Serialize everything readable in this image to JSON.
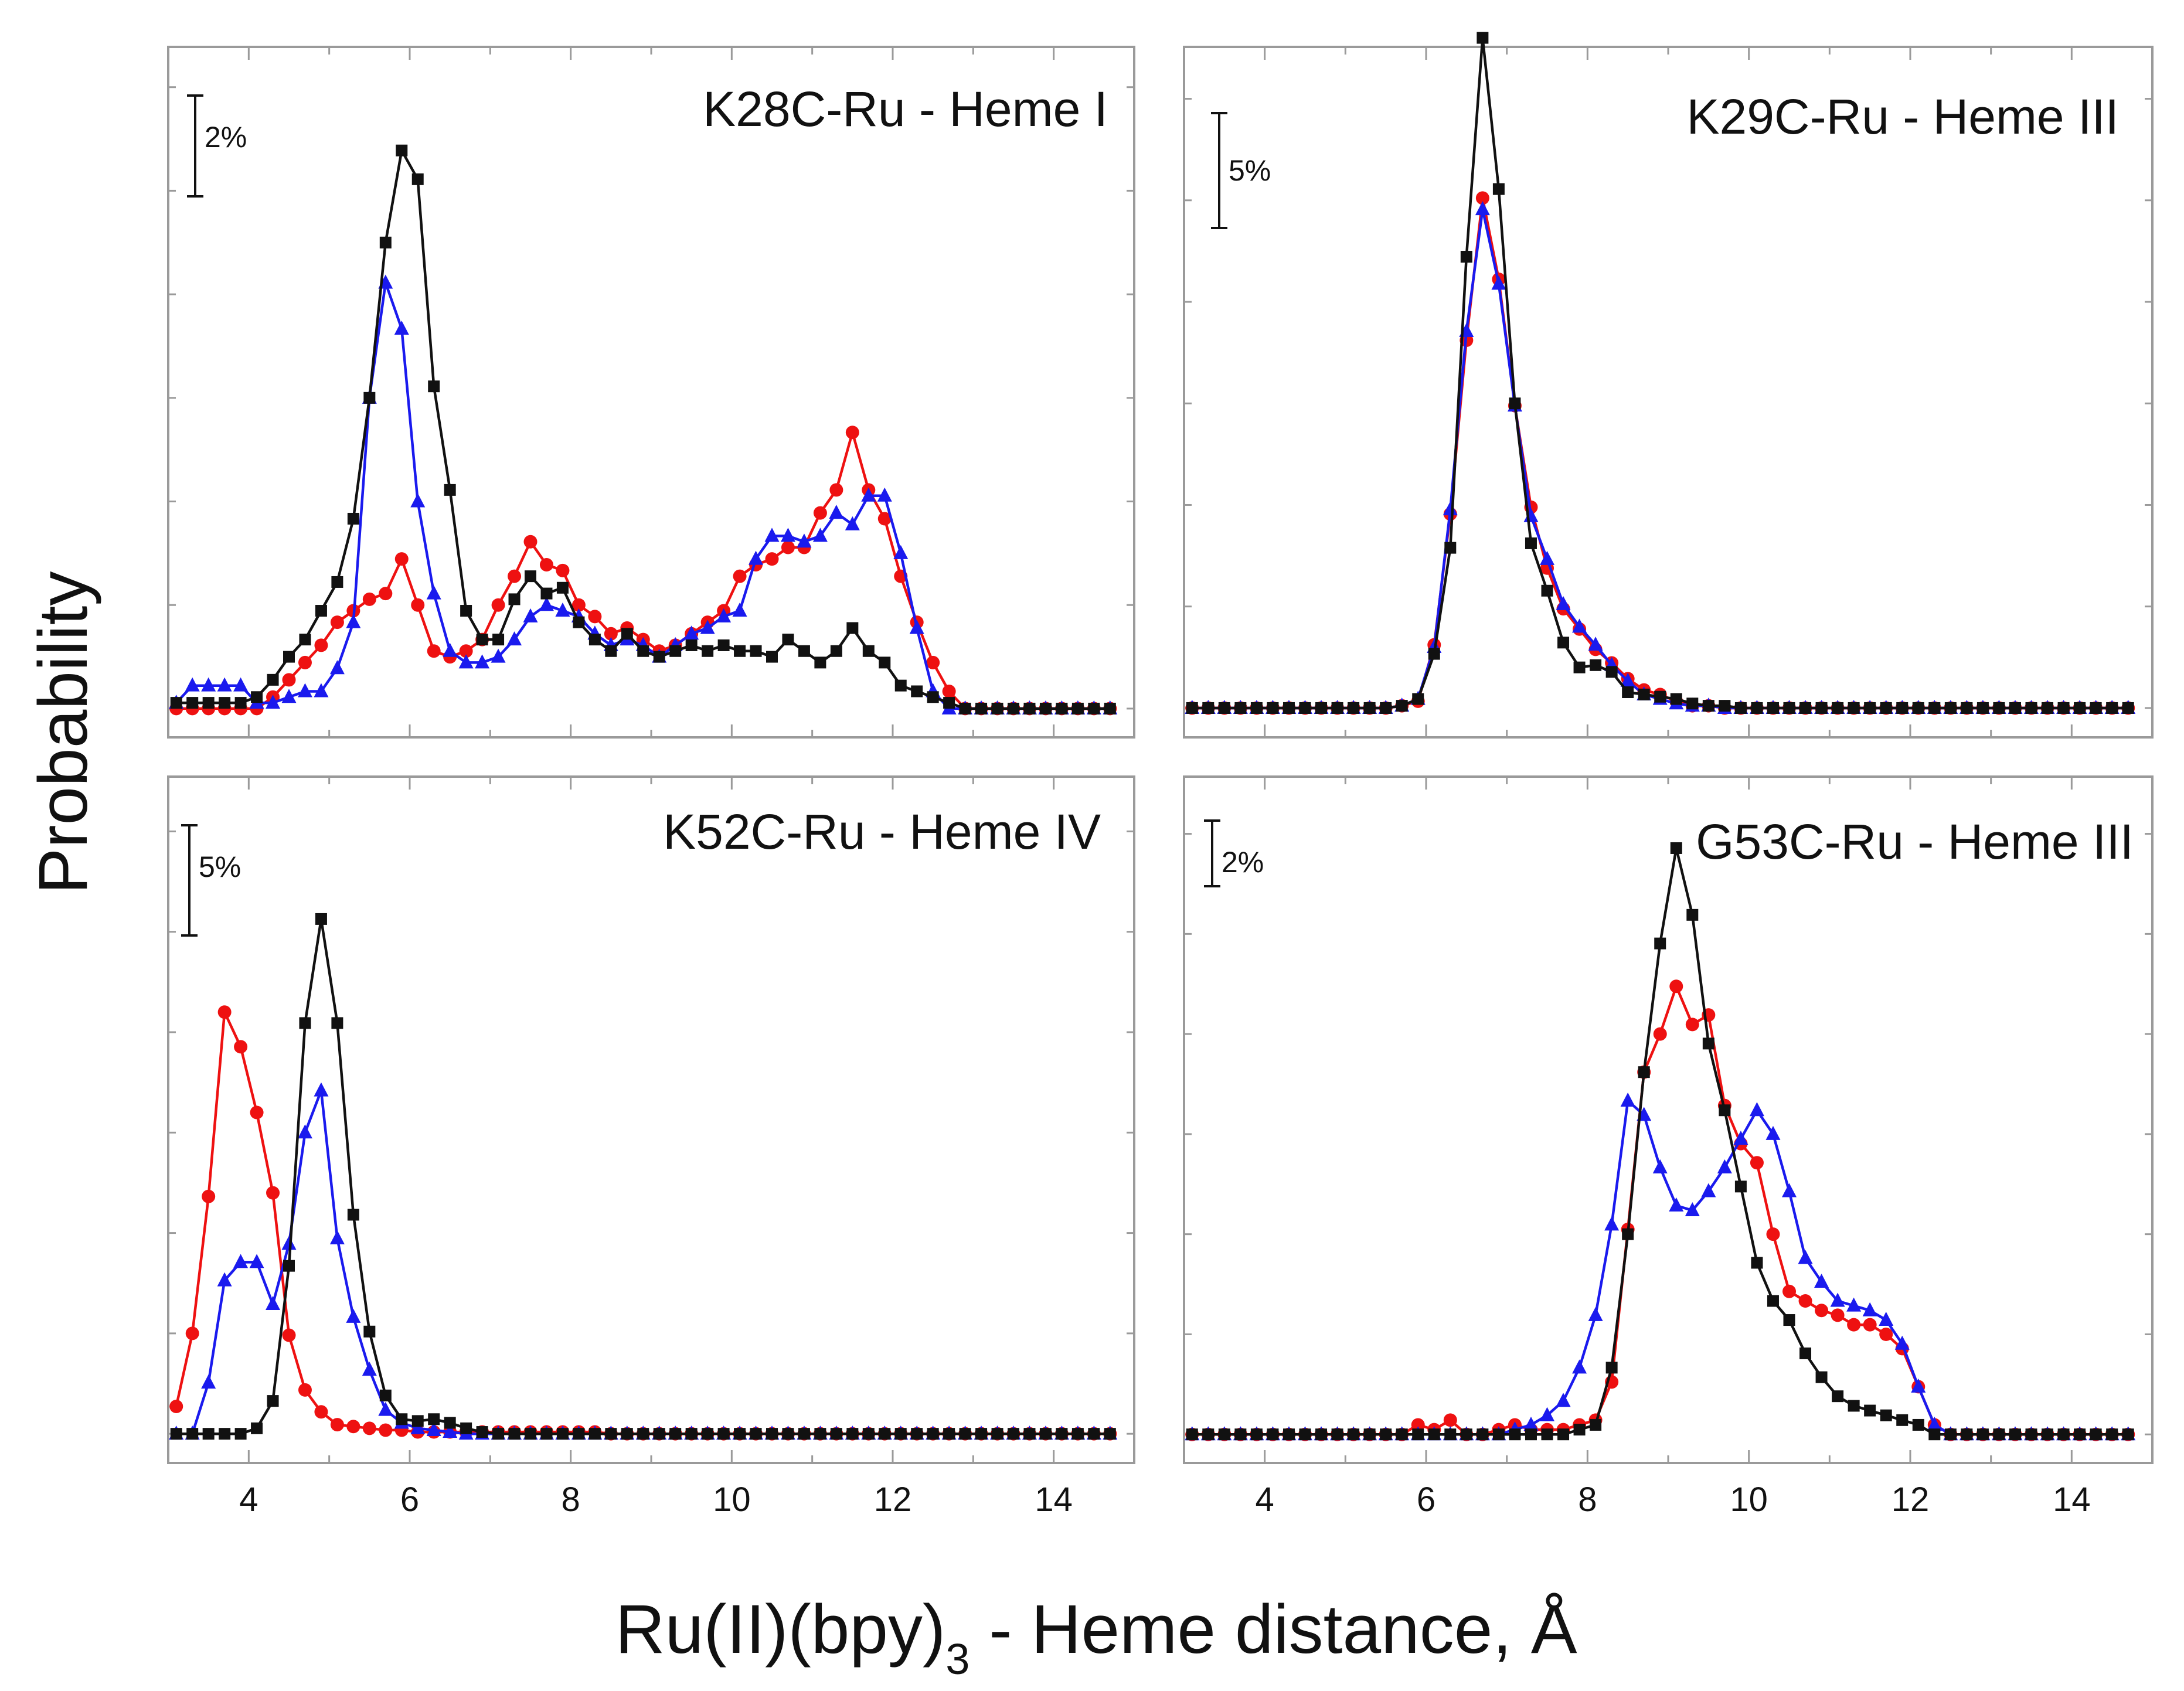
{
  "figure": {
    "ylabel": "Probability",
    "xlabel_main": "Ru(II)(bpy)",
    "xlabel_sub": "3",
    "xlabel_rest": " - Heme distance, Å",
    "x_ticks": [
      "4",
      "6",
      "8",
      "10",
      "12",
      "14"
    ]
  },
  "series_styles": [
    {
      "name": "black-squares",
      "color": "#111111",
      "marker": "square"
    },
    {
      "name": "red-circles",
      "color": "#ee1111",
      "marker": "circle"
    },
    {
      "name": "blue-triangles",
      "color": "#1a1aee",
      "marker": "triangle"
    }
  ],
  "chart_data": [
    {
      "type": "line",
      "title": "K28C-Ru - Heme I",
      "scale_bar": "2%",
      "xlim": [
        3,
        15
      ],
      "ylim": [
        -0.5,
        11.5
      ],
      "y_minor_ticks": [
        0,
        1.8,
        3.6,
        5.4,
        7.2,
        9.0,
        10.8
      ],
      "x": [
        3.1,
        3.3,
        3.5,
        3.7,
        3.9,
        4.1,
        4.3,
        4.5,
        4.7,
        4.9,
        5.1,
        5.3,
        5.5,
        5.7,
        5.9,
        6.1,
        6.3,
        6.5,
        6.7,
        6.9,
        7.1,
        7.3,
        7.5,
        7.7,
        7.9,
        8.1,
        8.3,
        8.5,
        8.7,
        8.9,
        9.1,
        9.3,
        9.5,
        9.7,
        9.9,
        10.1,
        10.3,
        10.5,
        10.7,
        10.9,
        11.1,
        11.3,
        11.5,
        11.7,
        11.9,
        12.1,
        12.3,
        12.5,
        12.7,
        12.9,
        13.1,
        13.3,
        13.5,
        13.7,
        13.9,
        14.1,
        14.3,
        14.5,
        14.7
      ],
      "series": [
        {
          "name": "black-squares",
          "values": [
            0.1,
            0.1,
            0.1,
            0.1,
            0.1,
            0.2,
            0.5,
            0.9,
            1.2,
            1.7,
            2.2,
            3.3,
            5.4,
            8.1,
            9.7,
            9.2,
            5.6,
            3.8,
            1.7,
            1.2,
            1.2,
            1.9,
            2.3,
            2.0,
            2.1,
            1.5,
            1.2,
            1.0,
            1.3,
            1.0,
            0.9,
            1.0,
            1.1,
            1.0,
            1.1,
            1.0,
            1.0,
            0.9,
            1.2,
            1.0,
            0.8,
            1.0,
            1.4,
            1.0,
            0.8,
            0.4,
            0.3,
            0.2,
            0.1,
            0.0,
            0.0,
            0.0,
            0.0,
            0.0,
            0.0,
            0.0,
            0.0,
            0.0,
            0.0
          ]
        },
        {
          "name": "red-circles",
          "values": [
            0.0,
            0.0,
            0.0,
            0.0,
            0.0,
            0.0,
            0.2,
            0.5,
            0.8,
            1.1,
            1.5,
            1.7,
            1.9,
            2.0,
            2.6,
            1.8,
            1.0,
            0.9,
            1.0,
            1.2,
            1.8,
            2.3,
            2.9,
            2.5,
            2.4,
            1.8,
            1.6,
            1.3,
            1.4,
            1.2,
            1.0,
            1.1,
            1.3,
            1.5,
            1.7,
            2.3,
            2.5,
            2.6,
            2.8,
            2.8,
            3.4,
            3.8,
            4.8,
            3.8,
            3.3,
            2.3,
            1.5,
            0.8,
            0.3,
            0.0,
            0.0,
            0.0,
            0.0,
            0.0,
            0.0,
            0.0,
            0.0,
            0.0,
            0.0
          ]
        },
        {
          "name": "blue-triangles",
          "values": [
            0.1,
            0.4,
            0.4,
            0.4,
            0.4,
            0.1,
            0.1,
            0.2,
            0.3,
            0.3,
            0.7,
            1.5,
            5.4,
            7.4,
            6.6,
            3.6,
            2.0,
            1.0,
            0.8,
            0.8,
            0.9,
            1.2,
            1.6,
            1.8,
            1.7,
            1.6,
            1.3,
            1.1,
            1.2,
            1.1,
            0.9,
            1.1,
            1.3,
            1.4,
            1.6,
            1.7,
            2.6,
            3.0,
            3.0,
            2.9,
            3.0,
            3.4,
            3.2,
            3.7,
            3.7,
            2.7,
            1.4,
            0.3,
            0.0,
            0.0,
            0.0,
            0.0,
            0.0,
            0.0,
            0.0,
            0.0,
            0.0,
            0.0,
            0.0
          ]
        }
      ]
    },
    {
      "type": "line",
      "title": "K29C-Ru - Heme III",
      "scale_bar": "5%",
      "xlim": [
        3,
        15
      ],
      "ylim": [
        -1.3,
        29.3
      ],
      "y_minor_ticks": [
        0,
        4.5,
        9.0,
        13.5,
        18.0,
        22.5,
        27.0
      ],
      "x": [
        3.1,
        3.3,
        3.5,
        3.7,
        3.9,
        4.1,
        4.3,
        4.5,
        4.7,
        4.9,
        5.1,
        5.3,
        5.5,
        5.7,
        5.9,
        6.1,
        6.3,
        6.5,
        6.7,
        6.9,
        7.1,
        7.3,
        7.5,
        7.7,
        7.9,
        8.1,
        8.3,
        8.5,
        8.7,
        8.9,
        9.1,
        9.3,
        9.5,
        9.7,
        9.9,
        10.1,
        10.3,
        10.5,
        10.7,
        10.9,
        11.1,
        11.3,
        11.5,
        11.7,
        11.9,
        12.1,
        12.3,
        12.5,
        12.7,
        12.9,
        13.1,
        13.3,
        13.5,
        13.7,
        13.9,
        14.1,
        14.3,
        14.5,
        14.7
      ],
      "series": [
        {
          "name": "black-squares",
          "values": [
            0.0,
            0.0,
            0.0,
            0.0,
            0.0,
            0.0,
            0.0,
            0.0,
            0.0,
            0.0,
            0.0,
            0.0,
            0.0,
            0.1,
            0.4,
            2.4,
            7.1,
            20.0,
            29.7,
            23.0,
            13.5,
            7.3,
            5.2,
            2.9,
            1.8,
            1.9,
            1.6,
            0.7,
            0.6,
            0.5,
            0.4,
            0.2,
            0.1,
            0.1,
            0.0,
            0.0,
            0.0,
            0.0,
            0.0,
            0.0,
            0.0,
            0.0,
            0.0,
            0.0,
            0.0,
            0.0,
            0.0,
            0.0,
            0.0,
            0.0,
            0.0,
            0.0,
            0.0,
            0.0,
            0.0,
            0.0,
            0.0,
            0.0,
            0.0
          ]
        },
        {
          "name": "red-circles",
          "values": [
            0.0,
            0.0,
            0.0,
            0.0,
            0.0,
            0.0,
            0.0,
            0.0,
            0.0,
            0.0,
            0.0,
            0.0,
            0.0,
            0.1,
            0.3,
            2.8,
            8.6,
            16.3,
            22.6,
            19.0,
            13.4,
            8.9,
            6.2,
            4.4,
            3.5,
            2.6,
            2.0,
            1.3,
            0.8,
            0.6,
            0.3,
            0.1,
            0.1,
            0.0,
            0.0,
            0.0,
            0.0,
            0.0,
            0.0,
            0.0,
            0.0,
            0.0,
            0.0,
            0.0,
            0.0,
            0.0,
            0.0,
            0.0,
            0.0,
            0.0,
            0.0,
            0.0,
            0.0,
            0.0,
            0.0,
            0.0,
            0.0,
            0.0,
            0.0
          ]
        },
        {
          "name": "blue-triangles",
          "values": [
            0.0,
            0.0,
            0.0,
            0.0,
            0.0,
            0.0,
            0.0,
            0.0,
            0.0,
            0.0,
            0.0,
            0.0,
            0.0,
            0.1,
            0.4,
            2.7,
            8.8,
            16.7,
            22.1,
            18.8,
            13.4,
            8.5,
            6.6,
            4.6,
            3.6,
            2.8,
            1.9,
            1.2,
            0.6,
            0.4,
            0.2,
            0.1,
            0.1,
            0.0,
            0.0,
            0.0,
            0.0,
            0.0,
            0.0,
            0.0,
            0.0,
            0.0,
            0.0,
            0.0,
            0.0,
            0.0,
            0.0,
            0.0,
            0.0,
            0.0,
            0.0,
            0.0,
            0.0,
            0.0,
            0.0,
            0.0,
            0.0,
            0.0,
            0.0
          ]
        }
      ]
    },
    {
      "type": "line",
      "title": "K52C-Ru - Heme IV",
      "scale_bar": "5%",
      "xlim": [
        3,
        15
      ],
      "ylim": [
        -1.6,
        36.0
      ],
      "y_minor_ticks": [
        0,
        5.5,
        11.0,
        16.5,
        22.0,
        27.5,
        33.0
      ],
      "x": [
        3.1,
        3.3,
        3.5,
        3.7,
        3.9,
        4.1,
        4.3,
        4.5,
        4.7,
        4.9,
        5.1,
        5.3,
        5.5,
        5.7,
        5.9,
        6.1,
        6.3,
        6.5,
        6.7,
        6.9,
        7.1,
        7.3,
        7.5,
        7.7,
        7.9,
        8.1,
        8.3,
        8.5,
        8.7,
        8.9,
        9.1,
        9.3,
        9.5,
        9.7,
        9.9,
        10.1,
        10.3,
        10.5,
        10.7,
        10.9,
        11.1,
        11.3,
        11.5,
        11.7,
        11.9,
        12.1,
        12.3,
        12.5,
        12.7,
        12.9,
        13.1,
        13.3,
        13.5,
        13.7,
        13.9,
        14.1,
        14.3,
        14.5,
        14.7
      ],
      "series": [
        {
          "name": "black-squares",
          "values": [
            0.0,
            0.0,
            0.0,
            0.0,
            0.0,
            0.3,
            1.8,
            9.2,
            22.5,
            28.2,
            22.5,
            12.0,
            5.6,
            2.1,
            0.8,
            0.7,
            0.8,
            0.6,
            0.3,
            0.1,
            0.0,
            0.0,
            0.0,
            0.0,
            0.0,
            0.0,
            0.0,
            0.0,
            0.0,
            0.0,
            0.0,
            0.0,
            0.0,
            0.0,
            0.0,
            0.0,
            0.0,
            0.0,
            0.0,
            0.0,
            0.0,
            0.0,
            0.0,
            0.0,
            0.0,
            0.0,
            0.0,
            0.0,
            0.0,
            0.0,
            0.0,
            0.0,
            0.0,
            0.0,
            0.0,
            0.0,
            0.0,
            0.0,
            0.0
          ]
        },
        {
          "name": "red-circles",
          "values": [
            1.5,
            5.5,
            13.0,
            23.1,
            21.2,
            17.6,
            13.2,
            5.4,
            2.4,
            1.2,
            0.5,
            0.4,
            0.3,
            0.2,
            0.2,
            0.1,
            0.1,
            0.1,
            0.1,
            0.1,
            0.1,
            0.1,
            0.1,
            0.1,
            0.1,
            0.1,
            0.1,
            0.0,
            0.0,
            0.0,
            0.0,
            0.0,
            0.0,
            0.0,
            0.0,
            0.0,
            0.0,
            0.0,
            0.0,
            0.0,
            0.0,
            0.0,
            0.0,
            0.0,
            0.0,
            0.0,
            0.0,
            0.0,
            0.0,
            0.0,
            0.0,
            0.0,
            0.0,
            0.0,
            0.0,
            0.0,
            0.0,
            0.0,
            0.0
          ]
        },
        {
          "name": "blue-triangles",
          "values": [
            0.0,
            0.0,
            2.8,
            8.4,
            9.4,
            9.4,
            7.1,
            10.4,
            16.5,
            18.8,
            10.7,
            6.4,
            3.5,
            1.3,
            0.6,
            0.3,
            0.2,
            0.1,
            0.0,
            0.0,
            0.0,
            0.0,
            0.0,
            0.0,
            0.0,
            0.0,
            0.0,
            0.0,
            0.0,
            0.0,
            0.0,
            0.0,
            0.0,
            0.0,
            0.0,
            0.0,
            0.0,
            0.0,
            0.0,
            0.0,
            0.0,
            0.0,
            0.0,
            0.0,
            0.0,
            0.0,
            0.0,
            0.0,
            0.0,
            0.0,
            0.0,
            0.0,
            0.0,
            0.0,
            0.0,
            0.0,
            0.0,
            0.0,
            0.0
          ]
        }
      ]
    },
    {
      "type": "line",
      "title": "G53C-Ru - Heme III",
      "scale_bar": "2%",
      "xlim": [
        3,
        15
      ],
      "ylim": [
        -0.6,
        13.8
      ],
      "y_minor_ticks": [
        0,
        2.1,
        4.2,
        6.3,
        8.4,
        10.5,
        12.6
      ],
      "x": [
        3.1,
        3.3,
        3.5,
        3.7,
        3.9,
        4.1,
        4.3,
        4.5,
        4.7,
        4.9,
        5.1,
        5.3,
        5.5,
        5.7,
        5.9,
        6.1,
        6.3,
        6.5,
        6.7,
        6.9,
        7.1,
        7.3,
        7.5,
        7.7,
        7.9,
        8.1,
        8.3,
        8.5,
        8.7,
        8.9,
        9.1,
        9.3,
        9.5,
        9.7,
        9.9,
        10.1,
        10.3,
        10.5,
        10.7,
        10.9,
        11.1,
        11.3,
        11.5,
        11.7,
        11.9,
        12.1,
        12.3,
        12.5,
        12.7,
        12.9,
        13.1,
        13.3,
        13.5,
        13.7,
        13.9,
        14.1,
        14.3,
        14.5,
        14.7
      ],
      "series": [
        {
          "name": "black-squares",
          "values": [
            0.0,
            0.0,
            0.0,
            0.0,
            0.0,
            0.0,
            0.0,
            0.0,
            0.0,
            0.0,
            0.0,
            0.0,
            0.0,
            0.0,
            0.0,
            0.0,
            0.0,
            0.0,
            0.0,
            0.0,
            0.0,
            0.0,
            0.0,
            0.0,
            0.1,
            0.2,
            1.4,
            4.2,
            7.6,
            10.3,
            12.3,
            10.9,
            8.2,
            6.8,
            5.2,
            3.6,
            2.8,
            2.4,
            1.7,
            1.2,
            0.8,
            0.6,
            0.5,
            0.4,
            0.3,
            0.2,
            0.0,
            0.0,
            0.0,
            0.0,
            0.0,
            0.0,
            0.0,
            0.0,
            0.0,
            0.0,
            0.0,
            0.0,
            0.0
          ]
        },
        {
          "name": "red-circles",
          "values": [
            0.0,
            0.0,
            0.0,
            0.0,
            0.0,
            0.0,
            0.0,
            0.0,
            0.0,
            0.0,
            0.0,
            0.0,
            0.0,
            0.0,
            0.2,
            0.1,
            0.3,
            0.0,
            0.0,
            0.1,
            0.2,
            0.1,
            0.1,
            0.1,
            0.2,
            0.3,
            1.1,
            4.3,
            7.6,
            8.4,
            9.4,
            8.6,
            8.8,
            6.9,
            6.1,
            5.7,
            4.2,
            3.0,
            2.8,
            2.6,
            2.5,
            2.3,
            2.3,
            2.1,
            1.8,
            1.0,
            0.2,
            0.0,
            0.0,
            0.0,
            0.0,
            0.0,
            0.0,
            0.0,
            0.0,
            0.0,
            0.0,
            0.0,
            0.0
          ]
        },
        {
          "name": "blue-triangles",
          "values": [
            0.0,
            0.0,
            0.0,
            0.0,
            0.0,
            0.0,
            0.0,
            0.0,
            0.0,
            0.0,
            0.0,
            0.0,
            0.0,
            0.0,
            0.0,
            0.0,
            0.0,
            0.0,
            0.0,
            0.0,
            0.1,
            0.2,
            0.4,
            0.7,
            1.4,
            2.5,
            4.4,
            7.0,
            6.7,
            5.6,
            4.8,
            4.7,
            5.1,
            5.6,
            6.2,
            6.8,
            6.3,
            5.1,
            3.7,
            3.2,
            2.8,
            2.7,
            2.6,
            2.4,
            1.9,
            1.0,
            0.2,
            0.0,
            0.0,
            0.0,
            0.0,
            0.0,
            0.0,
            0.0,
            0.0,
            0.0,
            0.0,
            0.0,
            0.0
          ]
        }
      ]
    }
  ]
}
